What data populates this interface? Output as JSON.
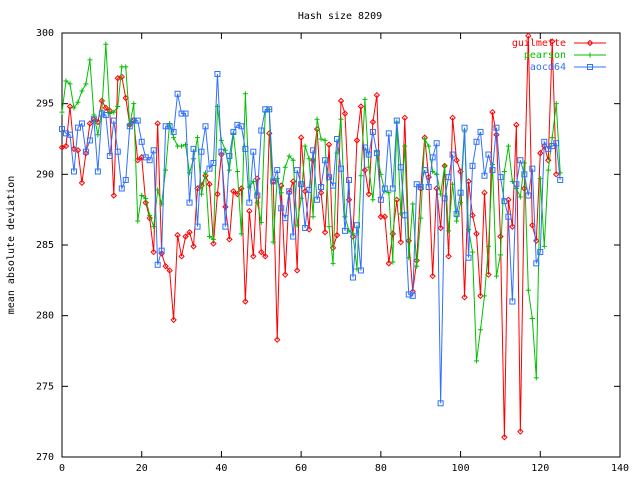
{
  "chart_data": {
    "type": "line",
    "title": "Hash size 8209",
    "xlabel": "",
    "ylabel": "mean absolute deviation",
    "xlim": [
      0,
      140
    ],
    "ylim": [
      270,
      300
    ],
    "xticks": [
      0,
      20,
      40,
      60,
      80,
      100,
      120,
      140
    ],
    "yticks": [
      270,
      275,
      280,
      285,
      290,
      295,
      300
    ],
    "grid": false,
    "legend_position": "top-right",
    "series": [
      {
        "name": "guilmette",
        "color": "#ff0000",
        "marker": "diamond",
        "x_start": 0,
        "values": [
          291.9,
          292.0,
          294.8,
          291.8,
          291.7,
          289.4,
          291.5,
          293.6,
          293.9,
          293.7,
          295.2,
          294.7,
          294.5,
          288.5,
          296.8,
          296.9,
          295.4,
          293.5,
          293.8,
          291.0,
          291.2,
          288.0,
          286.9,
          284.5,
          293.6,
          284.4,
          283.5,
          283.2,
          279.7,
          285.7,
          284.2,
          285.6,
          285.9,
          284.9,
          289.0,
          289.2,
          289.9,
          289.3,
          285.1,
          288.6,
          291.4,
          287.7,
          285.4,
          288.8,
          288.6,
          289.0,
          281.0,
          287.4,
          284.2,
          289.7,
          284.5,
          284.2,
          292.9,
          289.5,
          278.3,
          289.2,
          282.9,
          288.7,
          289.5,
          283.2,
          292.6,
          288.8,
          286.1,
          291.0,
          293.2,
          288.7,
          285.9,
          292.1,
          284.8,
          285.7,
          295.2,
          294.3,
          288.2,
          285.6,
          292.4,
          294.8,
          290.3,
          288.6,
          293.7,
          295.6,
          287.0,
          287.0,
          283.7,
          285.8,
          288.2,
          285.2,
          294.0,
          285.3,
          281.7,
          283.9,
          289.0,
          292.6,
          289.8,
          282.8,
          289.0,
          286.2,
          290.6,
          284.2,
          294.0,
          291.0,
          290.2,
          281.3,
          289.5,
          287.1,
          285.8,
          281.4,
          288.7,
          282.9,
          294.4,
          292.8,
          285.6,
          271.4,
          288.2,
          286.3,
          293.5,
          271.8,
          289.0,
          299.8,
          286.4,
          285.3,
          291.5,
          292.0,
          291.0,
          299.4,
          290.0
        ]
      },
      {
        "name": "pearson",
        "color": "#00c000",
        "marker": "plus",
        "x_start": 0,
        "values": [
          294.4,
          296.6,
          296.4,
          294.7,
          295.1,
          295.9,
          296.4,
          298.1,
          294.2,
          292.8,
          294.5,
          299.2,
          294.3,
          294.4,
          294.8,
          297.6,
          297.6,
          293.5,
          295.0,
          286.7,
          288.5,
          288.3,
          287.1,
          286.3,
          288.9,
          287.9,
          290.3,
          293.6,
          292.6,
          292.0,
          292.0,
          292.1,
          290.1,
          291.1,
          292.6,
          288.6,
          290.1,
          285.6,
          285.4,
          294.8,
          292.4,
          291.7,
          290.3,
          292.9,
          290.2,
          285.8,
          295.7,
          289.1,
          289.5,
          288.0,
          286.6,
          294.4,
          294.6,
          285.2,
          289.7,
          288.7,
          290.5,
          291.3,
          291.0,
          286.4,
          288.3,
          292.0,
          291.1,
          287.0,
          293.9,
          292.5,
          292.4,
          286.3,
          283.7,
          291.5,
          293.9,
          287.0,
          286.0,
          285.8,
          283.3,
          289.9,
          295.3,
          290.5,
          288.2,
          291.6,
          290.0,
          288.8,
          288.7,
          283.8,
          293.7,
          287.2,
          292.0,
          284.1,
          287.9,
          283.5,
          286.9,
          292.5,
          292.0,
          290.2,
          290.0,
          288.6,
          290.6,
          286.0,
          289.3,
          286.7,
          288.0,
          293.0,
          286.1,
          284.5,
          276.8,
          279.0,
          281.4,
          284.9,
          290.7,
          282.8,
          284.3,
          290.2,
          292.0,
          289.5,
          289.0,
          288.4,
          290.8,
          281.8,
          279.8,
          275.6,
          289.7,
          284.9,
          290.3,
          292.6,
          295.0,
          290.1
        ]
      },
      {
        "name": "aocd64",
        "color": "#3070ff",
        "marker": "square",
        "x_start": 0,
        "values": [
          293.2,
          292.9,
          292.8,
          290.2,
          293.3,
          293.6,
          291.6,
          292.4,
          293.9,
          290.2,
          294.3,
          294.2,
          291.3,
          293.8,
          291.6,
          289.0,
          289.6,
          293.4,
          293.8,
          293.8,
          292.3,
          291.2,
          291.0,
          291.7,
          283.6,
          284.6,
          293.4,
          293.4,
          293.0,
          295.7,
          294.3,
          294.3,
          288.0,
          291.8,
          286.3,
          291.6,
          293.4,
          290.4,
          290.8,
          297.1,
          291.6,
          286.3,
          291.3,
          293.0,
          293.5,
          293.4,
          291.8,
          288.0,
          291.6,
          288.5,
          293.1,
          294.6,
          294.6,
          289.5,
          290.3,
          287.6,
          286.9,
          288.8,
          285.6,
          290.3,
          289.3,
          286.2,
          288.9,
          291.7,
          288.2,
          289.1,
          291.0,
          289.8,
          289.2,
          292.5,
          290.4,
          286.0,
          289.6,
          282.7,
          286.4,
          283.2,
          291.9,
          291.4,
          293.0,
          291.5,
          288.2,
          289.0,
          292.9,
          289.0,
          293.8,
          290.5,
          287.1,
          281.5,
          281.4,
          289.3,
          289.1,
          290.3,
          289.1,
          291.2,
          292.2,
          273.8,
          288.3,
          289.8,
          291.4,
          287.2,
          288.7,
          293.3,
          284.1,
          290.6,
          292.3,
          293.0,
          289.9,
          291.4,
          290.3,
          293.3,
          289.8,
          288.1,
          287.0,
          281.0,
          289.3,
          291.0,
          290.0,
          288.5,
          290.4,
          283.7,
          284.5,
          292.3,
          291.8,
          292.0,
          292.2,
          289.6
        ]
      }
    ]
  }
}
